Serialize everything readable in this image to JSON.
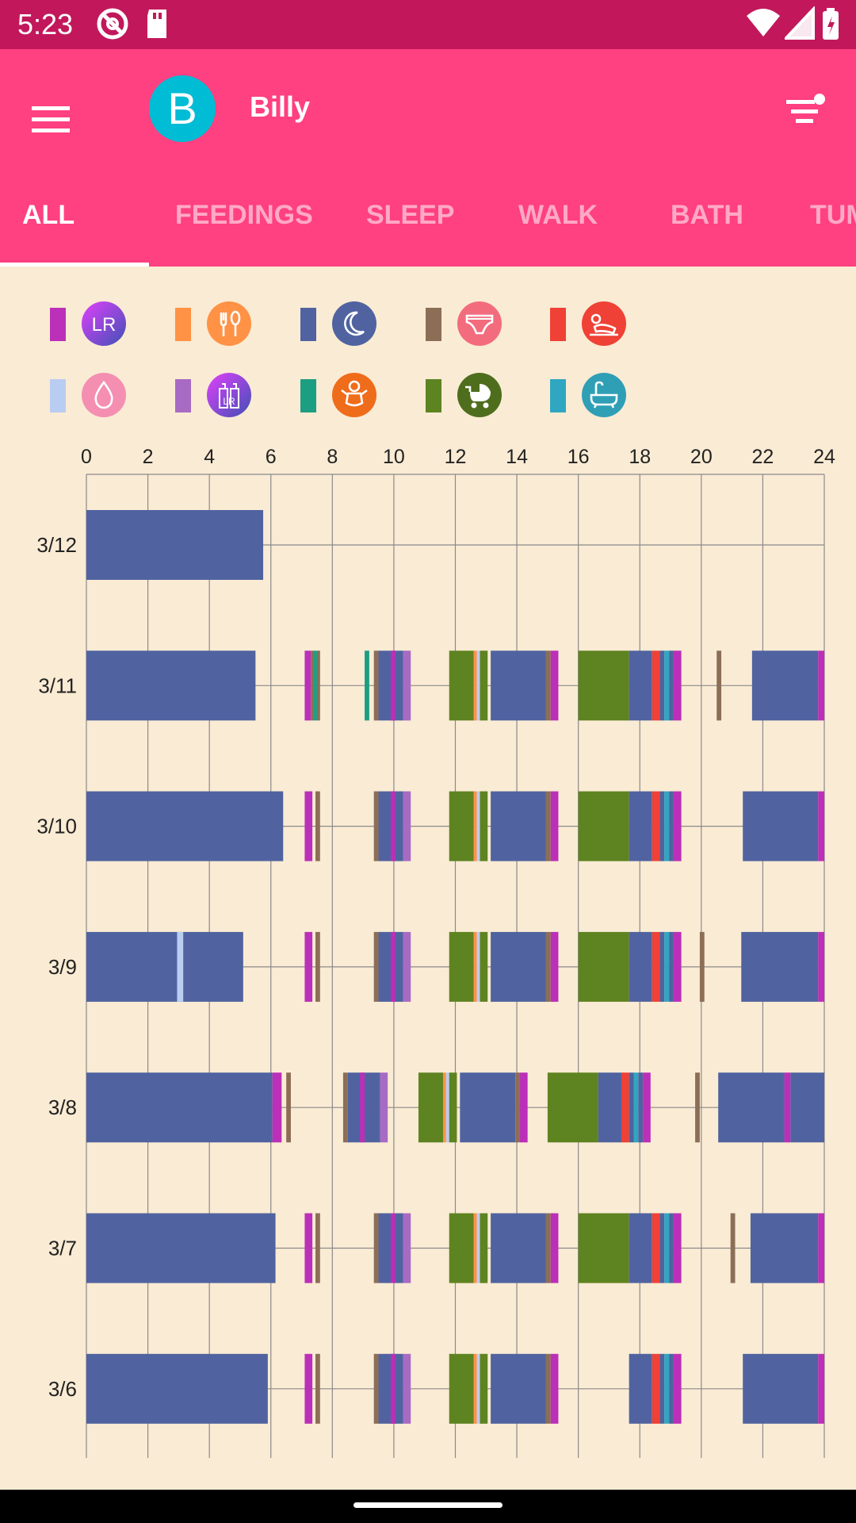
{
  "status_bar": {
    "time": "5:23",
    "icons": [
      "do-not-disturb-icon",
      "sd-card-icon",
      "wifi-icon",
      "signal-icon",
      "battery-icon"
    ]
  },
  "header": {
    "avatar_letter": "B",
    "name": "Billy",
    "colors": {
      "toolbar": "#FF4081",
      "status_bar": "#C2185B",
      "avatar": "#00BCD4"
    }
  },
  "tabs": [
    {
      "label": "ALL",
      "active": true
    },
    {
      "label": "FEEDINGS",
      "active": false
    },
    {
      "label": "SLEEP",
      "active": false
    },
    {
      "label": "WALK",
      "active": false
    },
    {
      "label": "BATH",
      "active": false
    },
    {
      "label": "TUM",
      "active": false
    }
  ],
  "legend": [
    {
      "id": "breastfeeding",
      "color": "#BC2FB8",
      "icon": "lr-breast-icon",
      "icon_bg": "#5C6BC0",
      "icon_text": "LR"
    },
    {
      "id": "feeding",
      "color": "#FF9245",
      "icon": "fork-spoon-icon",
      "icon_bg": "#FF9245"
    },
    {
      "id": "sleep",
      "color": "#5063A0",
      "icon": "moon-icon",
      "icon_bg": "#5063A0"
    },
    {
      "id": "diaper",
      "color": "#8C6E57",
      "icon": "diaper-icon",
      "icon_bg": "#F26C7E"
    },
    {
      "id": "tummy",
      "color": "#EF4135",
      "icon": "tummy-time-icon",
      "icon_bg": "#EF4135"
    },
    {
      "id": "pumping",
      "color": "#B9CCF2",
      "icon": "drop-icon",
      "icon_bg": "#F48FB1"
    },
    {
      "id": "bottle",
      "color": "#A86BC4",
      "icon": "lr-bottle-icon",
      "icon_bg": "#6A5ACD",
      "icon_text": "LR"
    },
    {
      "id": "play",
      "color": "#1B9E81",
      "icon": "baby-icon",
      "icon_bg": "#EF6C1B"
    },
    {
      "id": "walk",
      "color": "#5E8321",
      "icon": "stroller-icon",
      "icon_bg": "#4E6E1D"
    },
    {
      "id": "bath",
      "color": "#2FA7C1",
      "icon": "bathtub-icon",
      "icon_bg": "#2F9FB6"
    }
  ],
  "chart_data": {
    "type": "timeline",
    "x_ticks": [
      "0",
      "2",
      "4",
      "6",
      "8",
      "10",
      "12",
      "14",
      "16",
      "18",
      "20",
      "22",
      "24"
    ],
    "xlim": [
      0,
      24
    ],
    "x_unit": "hours",
    "grid": true,
    "days": [
      {
        "label": "3/12",
        "events": [
          {
            "type": "sleep",
            "start": 0,
            "end": 5.75
          }
        ]
      },
      {
        "label": "3/11",
        "events": [
          {
            "type": "sleep",
            "start": 0,
            "end": 5.5
          },
          {
            "type": "breastfeeding",
            "start": 7.1,
            "end": 7.3
          },
          {
            "type": "diaper",
            "start": 7.3,
            "end": 7.4
          },
          {
            "type": "play",
            "start": 7.4,
            "end": 7.5
          },
          {
            "type": "diaper",
            "start": 7.5,
            "end": 7.6
          },
          {
            "type": "play",
            "start": 9.05,
            "end": 9.2
          },
          {
            "type": "diaper",
            "start": 9.35,
            "end": 9.5
          },
          {
            "type": "sleep",
            "start": 9.5,
            "end": 10.3
          },
          {
            "type": "breastfeeding",
            "start": 9.9,
            "end": 10.05
          },
          {
            "type": "bottle",
            "start": 10.3,
            "end": 10.55
          },
          {
            "type": "walk",
            "start": 11.8,
            "end": 12.6
          },
          {
            "type": "feeding",
            "start": 12.6,
            "end": 12.7
          },
          {
            "type": "pumping",
            "start": 12.7,
            "end": 12.8
          },
          {
            "type": "walk",
            "start": 12.8,
            "end": 13.05
          },
          {
            "type": "sleep",
            "start": 13.15,
            "end": 14.95
          },
          {
            "type": "diaper",
            "start": 14.95,
            "end": 15.1
          },
          {
            "type": "breastfeeding",
            "start": 15.1,
            "end": 15.35
          },
          {
            "type": "walk",
            "start": 16.0,
            "end": 17.65
          },
          {
            "type": "sleep",
            "start": 17.65,
            "end": 18.4
          },
          {
            "type": "tummy",
            "start": 18.4,
            "end": 18.65
          },
          {
            "type": "sleep",
            "start": 18.65,
            "end": 18.8
          },
          {
            "type": "bath",
            "start": 18.8,
            "end": 18.95
          },
          {
            "type": "sleep",
            "start": 18.95,
            "end": 19.1
          },
          {
            "type": "breastfeeding",
            "start": 19.1,
            "end": 19.35
          },
          {
            "type": "diaper",
            "start": 20.5,
            "end": 20.65
          },
          {
            "type": "sleep",
            "start": 21.65,
            "end": 23.8
          },
          {
            "type": "breastfeeding",
            "start": 23.8,
            "end": 24
          }
        ]
      },
      {
        "label": "3/10",
        "events": [
          {
            "type": "sleep",
            "start": 0,
            "end": 6.4
          },
          {
            "type": "breastfeeding",
            "start": 7.1,
            "end": 7.35
          },
          {
            "type": "diaper",
            "start": 7.45,
            "end": 7.6
          },
          {
            "type": "diaper",
            "start": 9.35,
            "end": 9.5
          },
          {
            "type": "sleep",
            "start": 9.5,
            "end": 10.3
          },
          {
            "type": "breastfeeding",
            "start": 9.9,
            "end": 10.05
          },
          {
            "type": "bottle",
            "start": 10.3,
            "end": 10.55
          },
          {
            "type": "walk",
            "start": 11.8,
            "end": 12.6
          },
          {
            "type": "feeding",
            "start": 12.6,
            "end": 12.7
          },
          {
            "type": "pumping",
            "start": 12.7,
            "end": 12.8
          },
          {
            "type": "walk",
            "start": 12.8,
            "end": 13.05
          },
          {
            "type": "sleep",
            "start": 13.15,
            "end": 14.95
          },
          {
            "type": "diaper",
            "start": 14.95,
            "end": 15.1
          },
          {
            "type": "breastfeeding",
            "start": 15.1,
            "end": 15.35
          },
          {
            "type": "walk",
            "start": 16.0,
            "end": 17.65
          },
          {
            "type": "sleep",
            "start": 17.65,
            "end": 18.4
          },
          {
            "type": "tummy",
            "start": 18.4,
            "end": 18.65
          },
          {
            "type": "sleep",
            "start": 18.65,
            "end": 18.8
          },
          {
            "type": "bath",
            "start": 18.8,
            "end": 18.95
          },
          {
            "type": "sleep",
            "start": 18.95,
            "end": 19.1
          },
          {
            "type": "breastfeeding",
            "start": 19.1,
            "end": 19.35
          },
          {
            "type": "sleep",
            "start": 21.35,
            "end": 23.8
          },
          {
            "type": "breastfeeding",
            "start": 23.8,
            "end": 24
          }
        ]
      },
      {
        "label": "3/9",
        "events": [
          {
            "type": "sleep",
            "start": 0,
            "end": 5.1
          },
          {
            "type": "pumping",
            "start": 2.95,
            "end": 3.15
          },
          {
            "type": "breastfeeding",
            "start": 7.1,
            "end": 7.35
          },
          {
            "type": "diaper",
            "start": 7.45,
            "end": 7.6
          },
          {
            "type": "diaper",
            "start": 9.35,
            "end": 9.5
          },
          {
            "type": "sleep",
            "start": 9.5,
            "end": 10.3
          },
          {
            "type": "breastfeeding",
            "start": 9.9,
            "end": 10.05
          },
          {
            "type": "bottle",
            "start": 10.3,
            "end": 10.55
          },
          {
            "type": "walk",
            "start": 11.8,
            "end": 12.6
          },
          {
            "type": "feeding",
            "start": 12.6,
            "end": 12.7
          },
          {
            "type": "pumping",
            "start": 12.7,
            "end": 12.8
          },
          {
            "type": "walk",
            "start": 12.8,
            "end": 13.05
          },
          {
            "type": "sleep",
            "start": 13.15,
            "end": 14.95
          },
          {
            "type": "diaper",
            "start": 14.95,
            "end": 15.1
          },
          {
            "type": "breastfeeding",
            "start": 15.1,
            "end": 15.35
          },
          {
            "type": "walk",
            "start": 16.0,
            "end": 17.65
          },
          {
            "type": "sleep",
            "start": 17.65,
            "end": 18.4
          },
          {
            "type": "tummy",
            "start": 18.4,
            "end": 18.65
          },
          {
            "type": "sleep",
            "start": 18.65,
            "end": 18.8
          },
          {
            "type": "bath",
            "start": 18.8,
            "end": 18.95
          },
          {
            "type": "sleep",
            "start": 18.95,
            "end": 19.1
          },
          {
            "type": "breastfeeding",
            "start": 19.1,
            "end": 19.35
          },
          {
            "type": "diaper",
            "start": 19.95,
            "end": 20.1
          },
          {
            "type": "sleep",
            "start": 21.3,
            "end": 23.8
          },
          {
            "type": "breastfeeding",
            "start": 23.8,
            "end": 24
          }
        ]
      },
      {
        "label": "3/8",
        "events": [
          {
            "type": "sleep",
            "start": 0,
            "end": 6.05
          },
          {
            "type": "breastfeeding",
            "start": 6.05,
            "end": 6.35
          },
          {
            "type": "diaper",
            "start": 6.5,
            "end": 6.65
          },
          {
            "type": "diaper",
            "start": 8.35,
            "end": 8.5
          },
          {
            "type": "sleep",
            "start": 8.5,
            "end": 9.55
          },
          {
            "type": "breastfeeding",
            "start": 8.9,
            "end": 9.05
          },
          {
            "type": "bottle",
            "start": 9.55,
            "end": 9.8
          },
          {
            "type": "walk",
            "start": 10.8,
            "end": 11.6
          },
          {
            "type": "feeding",
            "start": 11.6,
            "end": 11.7
          },
          {
            "type": "pumping",
            "start": 11.7,
            "end": 11.8
          },
          {
            "type": "walk",
            "start": 11.8,
            "end": 12.05
          },
          {
            "type": "sleep",
            "start": 12.15,
            "end": 13.95
          },
          {
            "type": "diaper",
            "start": 13.95,
            "end": 14.1
          },
          {
            "type": "breastfeeding",
            "start": 14.1,
            "end": 14.35
          },
          {
            "type": "walk",
            "start": 15.0,
            "end": 16.65
          },
          {
            "type": "sleep",
            "start": 16.65,
            "end": 17.4
          },
          {
            "type": "tummy",
            "start": 17.4,
            "end": 17.65
          },
          {
            "type": "sleep",
            "start": 17.65,
            "end": 17.8
          },
          {
            "type": "bath",
            "start": 17.8,
            "end": 17.95
          },
          {
            "type": "sleep",
            "start": 17.95,
            "end": 18.1
          },
          {
            "type": "breastfeeding",
            "start": 18.1,
            "end": 18.35
          },
          {
            "type": "diaper",
            "start": 19.8,
            "end": 19.95
          },
          {
            "type": "sleep",
            "start": 20.55,
            "end": 22.7
          },
          {
            "type": "breastfeeding",
            "start": 22.7,
            "end": 22.9
          },
          {
            "type": "sleep",
            "start": 22.9,
            "end": 24
          }
        ]
      },
      {
        "label": "3/7",
        "events": [
          {
            "type": "sleep",
            "start": 0,
            "end": 6.15
          },
          {
            "type": "breastfeeding",
            "start": 7.1,
            "end": 7.35
          },
          {
            "type": "diaper",
            "start": 7.45,
            "end": 7.6
          },
          {
            "type": "diaper",
            "start": 9.35,
            "end": 9.5
          },
          {
            "type": "sleep",
            "start": 9.5,
            "end": 10.3
          },
          {
            "type": "breastfeeding",
            "start": 9.9,
            "end": 10.05
          },
          {
            "type": "bottle",
            "start": 10.3,
            "end": 10.55
          },
          {
            "type": "walk",
            "start": 11.8,
            "end": 12.6
          },
          {
            "type": "feeding",
            "start": 12.6,
            "end": 12.7
          },
          {
            "type": "pumping",
            "start": 12.7,
            "end": 12.8
          },
          {
            "type": "walk",
            "start": 12.8,
            "end": 13.05
          },
          {
            "type": "sleep",
            "start": 13.15,
            "end": 14.95
          },
          {
            "type": "diaper",
            "start": 14.95,
            "end": 15.1
          },
          {
            "type": "breastfeeding",
            "start": 15.1,
            "end": 15.35
          },
          {
            "type": "walk",
            "start": 16.0,
            "end": 17.65
          },
          {
            "type": "sleep",
            "start": 17.65,
            "end": 18.4
          },
          {
            "type": "tummy",
            "start": 18.4,
            "end": 18.65
          },
          {
            "type": "sleep",
            "start": 18.65,
            "end": 18.8
          },
          {
            "type": "bath",
            "start": 18.8,
            "end": 18.95
          },
          {
            "type": "sleep",
            "start": 18.95,
            "end": 19.1
          },
          {
            "type": "breastfeeding",
            "start": 19.1,
            "end": 19.35
          },
          {
            "type": "diaper",
            "start": 20.95,
            "end": 21.1
          },
          {
            "type": "sleep",
            "start": 21.6,
            "end": 23.8
          },
          {
            "type": "breastfeeding",
            "start": 23.8,
            "end": 24
          }
        ]
      },
      {
        "label": "3/6",
        "events": [
          {
            "type": "sleep",
            "start": 0,
            "end": 5.9
          },
          {
            "type": "breastfeeding",
            "start": 7.1,
            "end": 7.35
          },
          {
            "type": "diaper",
            "start": 7.45,
            "end": 7.6
          },
          {
            "type": "diaper",
            "start": 9.35,
            "end": 9.5
          },
          {
            "type": "sleep",
            "start": 9.5,
            "end": 10.3
          },
          {
            "type": "breastfeeding",
            "start": 9.9,
            "end": 10.05
          },
          {
            "type": "bottle",
            "start": 10.3,
            "end": 10.55
          },
          {
            "type": "walk",
            "start": 11.8,
            "end": 12.6
          },
          {
            "type": "feeding",
            "start": 12.6,
            "end": 12.7
          },
          {
            "type": "pumping",
            "start": 12.7,
            "end": 12.8
          },
          {
            "type": "walk",
            "start": 12.8,
            "end": 13.05
          },
          {
            "type": "sleep",
            "start": 13.15,
            "end": 14.95
          },
          {
            "type": "diaper",
            "start": 14.95,
            "end": 15.1
          },
          {
            "type": "breastfeeding",
            "start": 15.1,
            "end": 15.35
          },
          {
            "type": "sleep",
            "start": 17.65,
            "end": 18.4
          },
          {
            "type": "tummy",
            "start": 18.4,
            "end": 18.65
          },
          {
            "type": "sleep",
            "start": 18.65,
            "end": 18.8
          },
          {
            "type": "bath",
            "start": 18.8,
            "end": 18.95
          },
          {
            "type": "sleep",
            "start": 18.95,
            "end": 19.1
          },
          {
            "type": "breastfeeding",
            "start": 19.1,
            "end": 19.35
          },
          {
            "type": "sleep",
            "start": 21.35,
            "end": 23.8
          },
          {
            "type": "breastfeeding",
            "start": 23.8,
            "end": 24
          }
        ]
      }
    ]
  }
}
